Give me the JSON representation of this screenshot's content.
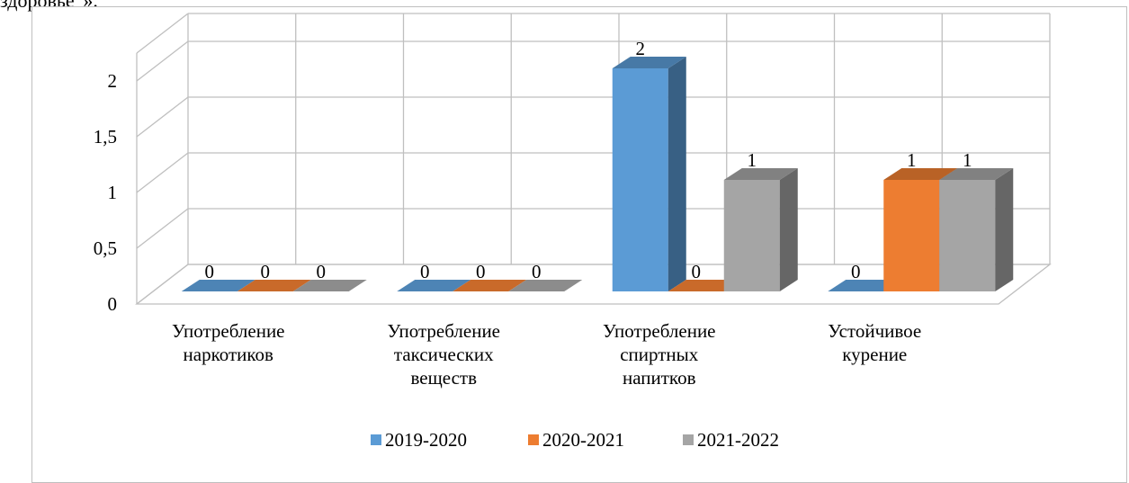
{
  "document": {
    "visible_text": "здоровье”»."
  },
  "chart_data": {
    "type": "bar",
    "categories": [
      [
        "Употребление",
        "наркотиков"
      ],
      [
        "Употребление",
        "таксических",
        "веществ"
      ],
      [
        "Употребление",
        "спиртных",
        "напитков"
      ],
      [
        "Устойчивое",
        "курение"
      ]
    ],
    "series": [
      {
        "name": "2019-2020",
        "values": [
          0,
          0,
          2,
          0
        ],
        "color": "#5b9bd5"
      },
      {
        "name": "2020-2021",
        "values": [
          0,
          0,
          0,
          1
        ],
        "color": "#ed7d31"
      },
      {
        "name": "2021-2022",
        "values": [
          0,
          0,
          1,
          1
        ],
        "color": "#a5a5a5"
      }
    ],
    "y_ticks": [
      "0",
      "0,5",
      "1",
      "1,5",
      "2"
    ],
    "ylim": [
      0,
      2
    ],
    "grid": true,
    "legend_position": "bottom",
    "data_labels": true,
    "style": "3d-clustered-column",
    "title": "",
    "xlabel": "",
    "ylabel": ""
  }
}
